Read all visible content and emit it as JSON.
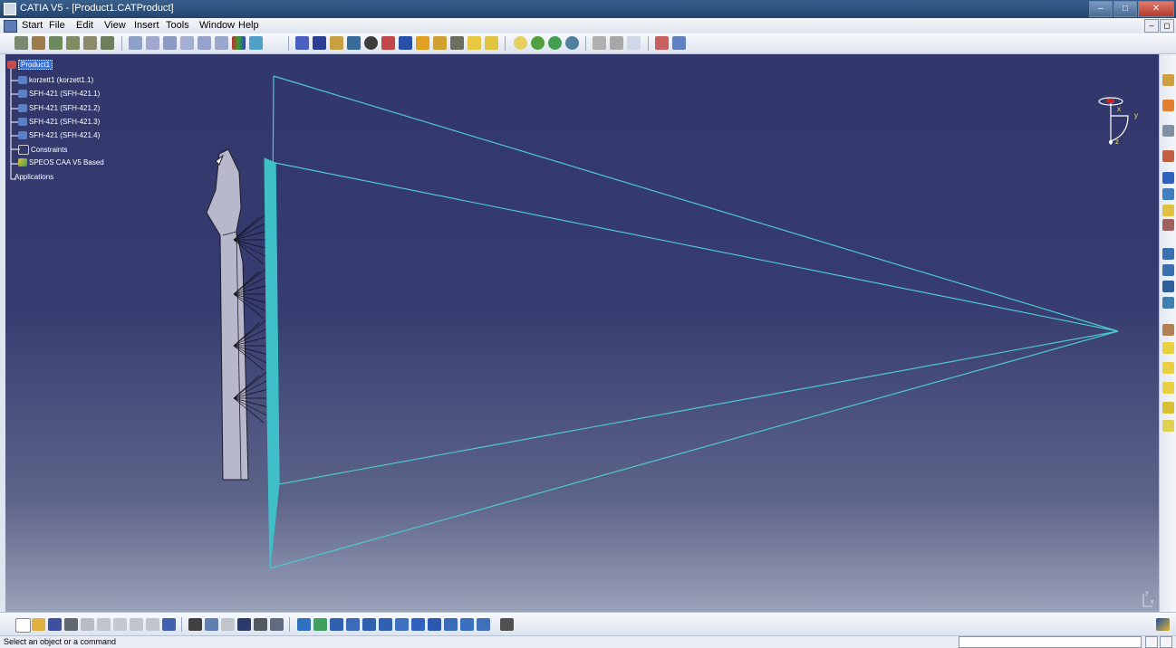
{
  "window": {
    "title": "CATIA V5 - [Product1.CATProduct]",
    "minimize": "–",
    "restore": "□",
    "close": "✕"
  },
  "menu": {
    "items": [
      "Start",
      "File",
      "Edit",
      "View",
      "Insert",
      "Tools",
      "Window",
      "Help"
    ]
  },
  "tree": {
    "root": "Product1",
    "items": [
      {
        "label": "korzett1 (korzett1.1)",
        "icon": "part-icon"
      },
      {
        "label": "SFH-421 (SFH-421.1)",
        "icon": "part-icon"
      },
      {
        "label": "SFH-421 (SFH-421.2)",
        "icon": "part-icon"
      },
      {
        "label": "SFH-421 (SFH-421.3)",
        "icon": "part-icon"
      },
      {
        "label": "SFH-421 (SFH-421.4)",
        "icon": "part-icon"
      },
      {
        "label": "Constraints",
        "icon": "constraints-icon"
      },
      {
        "label": "SPEOS CAA V5 Based",
        "icon": "speos-icon"
      },
      {
        "label": "Applications",
        "icon": ""
      }
    ]
  },
  "compass": {
    "x_label": "x",
    "y_label": "y",
    "z_label": "z"
  },
  "compass_small": {
    "y_label": "y",
    "x_label": "x"
  },
  "status": {
    "message": "Select an object or a command",
    "input_value": ""
  },
  "colors": {
    "viewport_top": "#32376b",
    "viewport_bottom": "#9aa2b8",
    "wire": "#4fc8d0",
    "part": "#b8b8cc"
  }
}
